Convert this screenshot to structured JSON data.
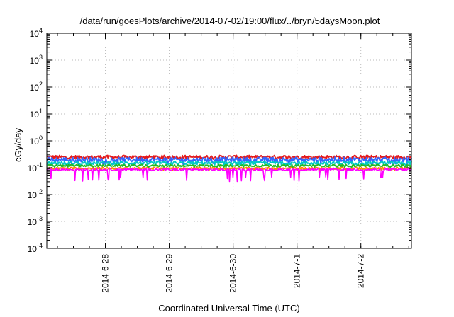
{
  "chart_data": {
    "type": "line",
    "title": "/data/run/goesPlots/archive/2014-07-02/19:00/flux/../bryn/5daysMoon.plot",
    "xlabel": "Coordinated Universal Time (UTC)",
    "ylabel": "cGy/day",
    "x_range": [
      "2014-06-27T02:00",
      "2014-07-02T19:00"
    ],
    "x_ticks": [
      "2014-6-28",
      "2014-6-29",
      "2014-6-30",
      "2014-7-1",
      "2014-7-2"
    ],
    "y_scale": "log",
    "ylim": [
      0.0001,
      10000
    ],
    "y_ticks": [
      {
        "value": 0.0001,
        "base": "10",
        "exp": "-4"
      },
      {
        "value": 0.001,
        "base": "10",
        "exp": "-3"
      },
      {
        "value": 0.01,
        "base": "10",
        "exp": "-2"
      },
      {
        "value": 0.1,
        "base": "10",
        "exp": "-1"
      },
      {
        "value": 1,
        "base": "10",
        "exp": "0"
      },
      {
        "value": 10,
        "base": "10",
        "exp": "1"
      },
      {
        "value": 100,
        "base": "10",
        "exp": "2"
      },
      {
        "value": 1000,
        "base": "10",
        "exp": "3"
      },
      {
        "value": 10000,
        "base": "10",
        "exp": "4"
      }
    ],
    "grid": true,
    "legend": "none",
    "series": [
      {
        "color": "#e41a1c",
        "typical": 0.25,
        "low": 0.2,
        "high": 0.32
      },
      {
        "color": "#3366ff",
        "typical": 0.2,
        "low": 0.13,
        "high": 0.28
      },
      {
        "color": "#00c8c8",
        "typical": 0.15,
        "low": 0.12,
        "high": 0.19
      },
      {
        "color": "#22bb22",
        "typical": 0.12,
        "low": 0.1,
        "high": 0.14
      },
      {
        "color": "#ff8800",
        "typical": 0.095,
        "low": 0.08,
        "high": 0.11
      },
      {
        "color": "#ff00ff",
        "typical": 0.085,
        "low": 0.03,
        "high": 0.1
      }
    ]
  }
}
